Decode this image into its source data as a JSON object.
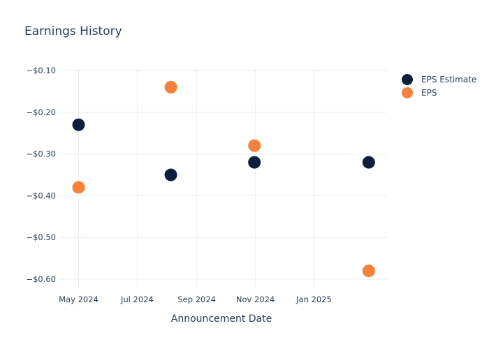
{
  "chart_data": {
    "type": "scatter",
    "title": "Earnings History",
    "xlabel": "Announcement Date",
    "ylabel": "",
    "x_ticks": [
      "May 2024",
      "Jul 2024",
      "Sep 2024",
      "Nov 2024",
      "Jan 2025"
    ],
    "y_ticks": [
      "−$0.10",
      "−$0.20",
      "−$0.30",
      "−$0.40",
      "−$0.50",
      "−$0.60"
    ],
    "ylim": [
      -0.62,
      -0.095
    ],
    "xlim": [
      "2024-04-11",
      "2025-03-18"
    ],
    "grid": true,
    "legend_position": "top-right",
    "series": [
      {
        "name": "EPS Estimate",
        "color": "#0d1f3f",
        "points": [
          {
            "x": "2024-05-01",
            "y": -0.23
          },
          {
            "x": "2024-08-05",
            "y": -0.35
          },
          {
            "x": "2024-10-31",
            "y": -0.32
          },
          {
            "x": "2025-02-27",
            "y": -0.32
          }
        ]
      },
      {
        "name": "EPS",
        "color": "#f5813a",
        "points": [
          {
            "x": "2024-05-01",
            "y": -0.38
          },
          {
            "x": "2024-08-05",
            "y": -0.14
          },
          {
            "x": "2024-10-31",
            "y": -0.28
          },
          {
            "x": "2025-02-27",
            "y": -0.58
          }
        ]
      }
    ]
  }
}
